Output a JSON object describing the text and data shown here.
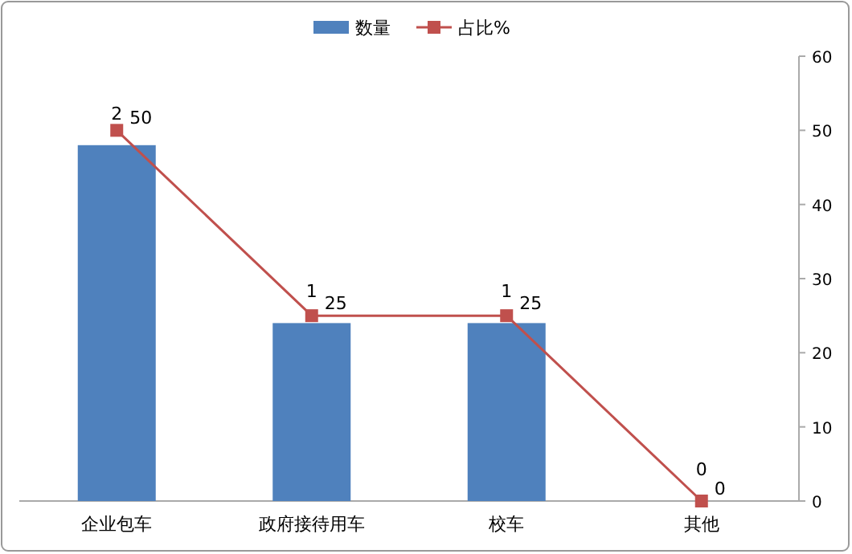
{
  "chart_data": {
    "type": "bar",
    "categories": [
      "企业包车",
      "政府接待用车",
      "校车",
      "其他"
    ],
    "series": [
      {
        "name": "数量",
        "color": "#4f81bd",
        "values": [
          2,
          1,
          1,
          0
        ],
        "axis": "y"
      },
      {
        "name": "占比%",
        "type": "line",
        "color": "#c0504d",
        "values": [
          50,
          25,
          25,
          0
        ],
        "axis": "y2",
        "marker": "square"
      }
    ],
    "ylim": [
      0,
      2.5
    ],
    "y2lim": [
      0,
      60
    ],
    "y2ticks": [
      0,
      10,
      20,
      30,
      40,
      50,
      60
    ],
    "data_labels": true,
    "legend": "top",
    "grid": false
  }
}
